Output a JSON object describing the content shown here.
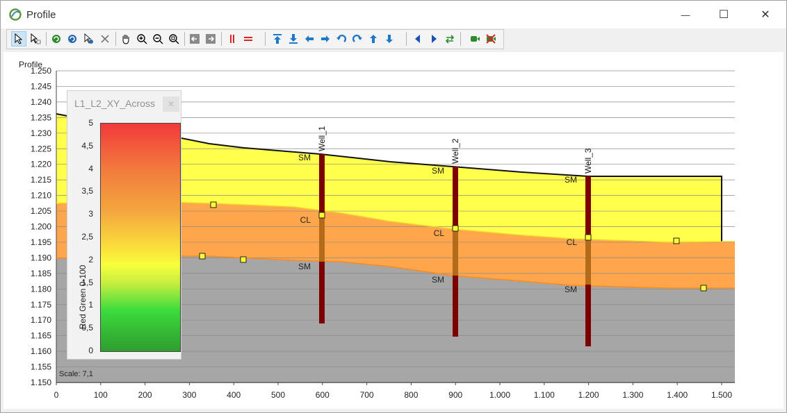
{
  "window": {
    "title": "Profile",
    "minimize_glyph": "—",
    "maximize_glyph": "☐",
    "close_glyph": "✕"
  },
  "toolbar": {
    "icons": [
      "select-arrow-icon",
      "select-multi-icon",
      "refresh-green-icon",
      "refresh-blue-icon",
      "select-cursor-icon",
      "delete-x-icon",
      "pan-hand-icon",
      "zoom-in-icon",
      "zoom-out-icon",
      "zoom-extent-icon",
      "arrow-left-box-icon",
      "arrow-right-box-icon",
      "vertical-red-lines-icon",
      "horizontal-red-lines-icon",
      "move-top-icon",
      "move-bottom-icon",
      "move-left-icon",
      "move-right-icon",
      "rotate-ccw-icon",
      "rotate-cw-icon",
      "move-up-icon",
      "move-down-icon",
      "triangle-left-icon",
      "triangle-right-icon",
      "swap-green-icon",
      "record-green-icon",
      "record-cancel-icon"
    ]
  },
  "plot": {
    "ylabel": "Profile",
    "scale_label": "Scale: 7,1",
    "y_ticks": [
      "1.250",
      "1.245",
      "1.240",
      "1.235",
      "1.230",
      "1.225",
      "1.220",
      "1.215",
      "1.210",
      "1.205",
      "1.200",
      "1.195",
      "1.190",
      "1.185",
      "1.180",
      "1.175",
      "1.170",
      "1.165",
      "1.160",
      "1.155",
      "1.150"
    ],
    "x_ticks": [
      "0",
      "100",
      "200",
      "300",
      "400",
      "500",
      "600",
      "700",
      "800",
      "900",
      "1.000",
      "1.100",
      "1.200",
      "1.300",
      "1.400",
      "1.500"
    ],
    "wells": [
      {
        "name": "Well_1",
        "labels": [
          "SM",
          "CL",
          "SM"
        ]
      },
      {
        "name": "Well_2",
        "labels": [
          "SM",
          "CL",
          "SM"
        ]
      },
      {
        "name": "Well_3",
        "labels": [
          "SM",
          "CL",
          "SM"
        ]
      }
    ],
    "colors": {
      "top_layer": "#ffff4c",
      "mid_layer": "#ffa64c",
      "bottom_layer": "#a6a6a6",
      "well": "#7d0000"
    }
  },
  "legend": {
    "title": "L1_L2_XY_Across",
    "close": "✕",
    "axis_label": "Red Green 0-100",
    "ticks": [
      "5",
      "4,5",
      "4",
      "3,5",
      "3",
      "2,5",
      "2",
      "1,5",
      "1",
      "0,5",
      "0"
    ]
  }
}
